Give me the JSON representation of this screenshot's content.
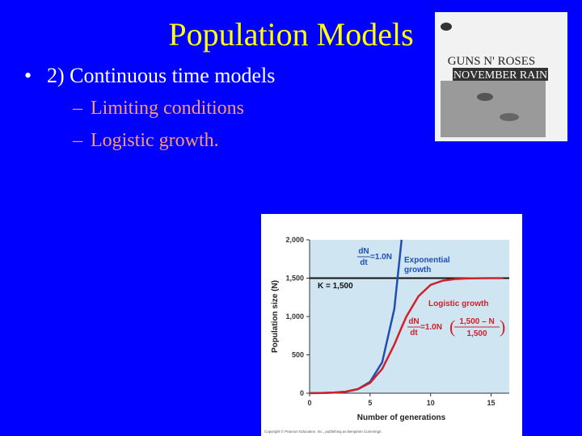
{
  "title": "Population Models",
  "bullets": [
    "2) Continuous time models"
  ],
  "sub_bullets": [
    "Limiting conditions",
    "Logistic growth."
  ],
  "album": {
    "lines": [
      "GUNS N' ROSES",
      "NOVEMBER RAIN"
    ]
  },
  "chart_data": {
    "type": "line",
    "ylabel": "Population size (N)",
    "xlabel": "Number of generations",
    "x": [
      0,
      1,
      2,
      3,
      4,
      5,
      6,
      7,
      7.6,
      8,
      9,
      10,
      11,
      12,
      13,
      14,
      15,
      16
    ],
    "series": [
      {
        "name": "Exponential growth",
        "color": "#1f4fb0",
        "values": [
          1,
          2.7,
          7.4,
          20,
          55,
          148,
          403,
          1097,
          2000,
          null,
          null,
          null,
          null,
          null,
          null,
          null,
          null,
          null
        ]
      },
      {
        "name": "Logistic growth",
        "color": "#d0202a",
        "values": [
          1,
          2.7,
          7.4,
          20,
          54,
          135,
          317,
          634,
          858,
          1000,
          1264,
          1413,
          1467,
          1488,
          1496,
          1499,
          1500,
          1500
        ]
      }
    ],
    "k_line": 1500,
    "k_label": "K = 1,500",
    "exp_label": [
      "Exponential",
      "growth"
    ],
    "eq1": {
      "num": "dN",
      "den": "dt",
      "rhs": "=1.0N"
    },
    "eq2": {
      "num": "dN",
      "den": "dt",
      "rhs": "=1.0N",
      "frac_num": "1,500 – N",
      "frac_den": "1,500"
    },
    "xlim": [
      0,
      16.5
    ],
    "ylim": [
      0,
      2000
    ],
    "xticks": [
      0,
      5,
      10,
      15
    ],
    "yticks": [
      0,
      500,
      {
        "value": 1000,
        "label": "1,000"
      },
      {
        "value": 1500,
        "label": "1,500"
      },
      {
        "value": 2000,
        "label": "2,000"
      }
    ],
    "copyright": "Copyright © Pearson Education, Inc., publishing as Benjamin Cummings."
  }
}
